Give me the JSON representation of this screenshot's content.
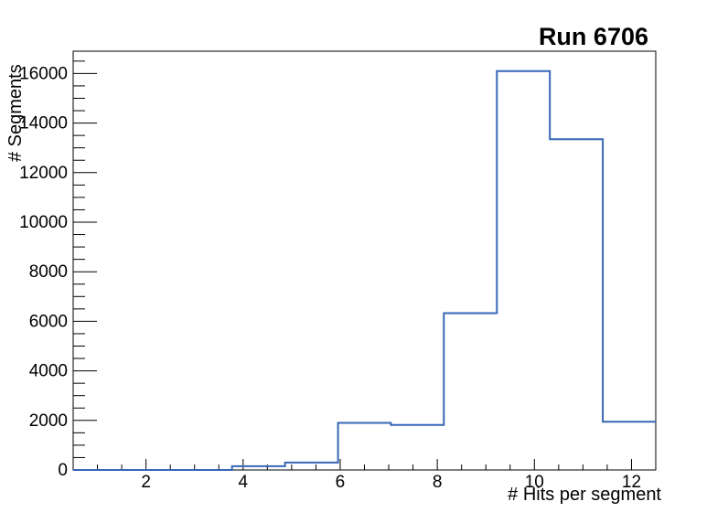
{
  "chart_data": {
    "type": "histogram",
    "title": "Run 6706",
    "grid": false,
    "legend": null,
    "line_color": "#3766b5",
    "axis_color": "#000000",
    "background_color": "#ffffff",
    "x_axis": {
      "label": "# Hits per segment",
      "range": [
        0.5,
        12.5
      ],
      "major_ticks": [
        2,
        4,
        6,
        8,
        10,
        12
      ],
      "major_tick_labels": [
        "2",
        "4",
        "6",
        "8",
        "10",
        "12"
      ],
      "minor_tick_step": 0.5
    },
    "y_axis": {
      "label": "# Segments",
      "range": [
        0,
        16900
      ],
      "major_ticks": [
        0,
        2000,
        4000,
        6000,
        8000,
        10000,
        12000,
        14000,
        16000
      ],
      "major_tick_labels": [
        "0",
        "2000",
        "4000",
        "6000",
        "8000",
        "10000",
        "12000",
        "14000",
        "16000"
      ],
      "minor_tick_step": 500
    },
    "bin_edges": [
      0.5,
      1.591,
      2.682,
      3.773,
      4.864,
      5.955,
      7.045,
      8.136,
      9.227,
      10.318,
      11.409,
      12.5
    ],
    "counts": [
      0,
      0,
      0,
      150,
      300,
      1900,
      1820,
      6330,
      16100,
      13350,
      1950
    ]
  }
}
